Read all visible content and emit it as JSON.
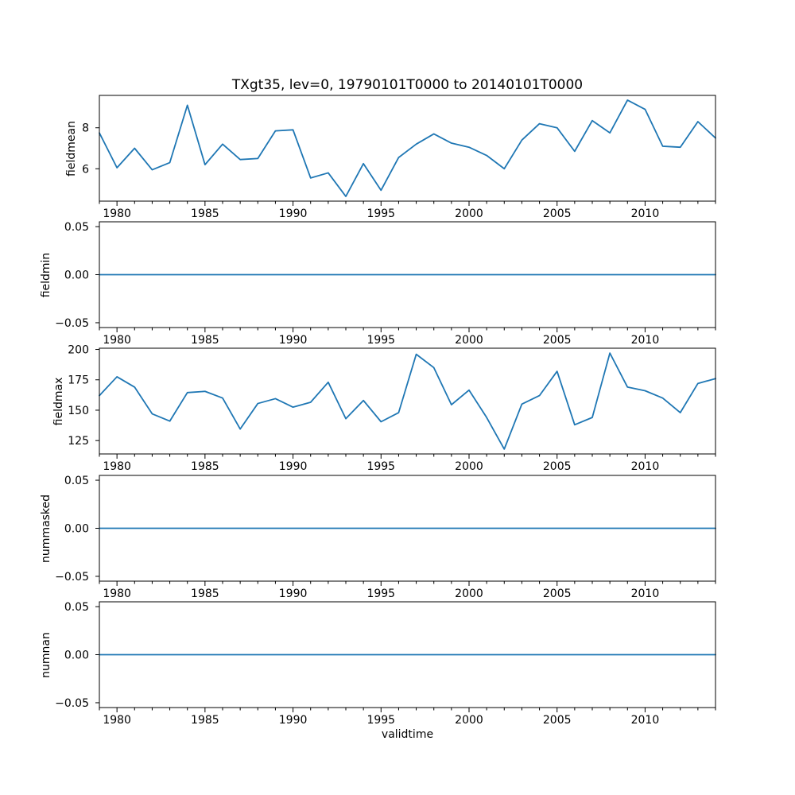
{
  "figure": {
    "title": "TXgt35, lev=0, 19790101T0000 to 20140101T0000",
    "xlabel": "validtime",
    "line_color": "#1f77b4",
    "axis_color": "#000000",
    "background": "#ffffff",
    "xlim": [
      1979,
      2014
    ],
    "x_major_ticks": [
      1980,
      1985,
      1990,
      1995,
      2000,
      2005,
      2010
    ],
    "x_major_tick_labels": [
      "1980",
      "1985",
      "1990",
      "1995",
      "2000",
      "2005",
      "2010"
    ],
    "x_minor_tick_step_years": 1
  },
  "years": [
    1979,
    1980,
    1981,
    1982,
    1983,
    1984,
    1985,
    1986,
    1987,
    1988,
    1989,
    1990,
    1991,
    1992,
    1993,
    1994,
    1995,
    1996,
    1997,
    1998,
    1999,
    2000,
    2001,
    2002,
    2003,
    2004,
    2005,
    2006,
    2007,
    2008,
    2009,
    2010,
    2011,
    2012,
    2013,
    2014
  ],
  "chart_data": [
    {
      "type": "line",
      "name": "fieldmean",
      "title": "TXgt35, lev=0, 19790101T0000 to 20140101T0000",
      "ylabel": "fieldmean",
      "x": [
        1979,
        1980,
        1981,
        1982,
        1983,
        1984,
        1985,
        1986,
        1987,
        1988,
        1989,
        1990,
        1991,
        1992,
        1993,
        1994,
        1995,
        1996,
        1997,
        1998,
        1999,
        2000,
        2001,
        2002,
        2003,
        2004,
        2005,
        2006,
        2007,
        2008,
        2009,
        2010,
        2011,
        2012,
        2013,
        2014
      ],
      "values": [
        7.75,
        6.05,
        7.0,
        5.95,
        6.3,
        9.1,
        6.2,
        7.2,
        6.45,
        6.5,
        7.85,
        7.9,
        5.55,
        5.8,
        4.65,
        6.25,
        4.95,
        6.55,
        7.2,
        7.7,
        7.25,
        7.05,
        6.65,
        6.0,
        7.4,
        8.2,
        8.0,
        6.85,
        8.35,
        7.75,
        9.35,
        8.9,
        7.1,
        7.05,
        8.3,
        7.5
      ],
      "ylim": [
        4.42,
        9.58
      ],
      "yticks": [
        6,
        8
      ],
      "ytick_labels": [
        "6",
        "8"
      ],
      "grid": false,
      "legend": "none"
    },
    {
      "type": "line",
      "name": "fieldmin",
      "ylabel": "fieldmin",
      "x": [
        1979,
        1980,
        1981,
        1982,
        1983,
        1984,
        1985,
        1986,
        1987,
        1988,
        1989,
        1990,
        1991,
        1992,
        1993,
        1994,
        1995,
        1996,
        1997,
        1998,
        1999,
        2000,
        2001,
        2002,
        2003,
        2004,
        2005,
        2006,
        2007,
        2008,
        2009,
        2010,
        2011,
        2012,
        2013,
        2014
      ],
      "values": [
        0,
        0,
        0,
        0,
        0,
        0,
        0,
        0,
        0,
        0,
        0,
        0,
        0,
        0,
        0,
        0,
        0,
        0,
        0,
        0,
        0,
        0,
        0,
        0,
        0,
        0,
        0,
        0,
        0,
        0,
        0,
        0,
        0,
        0,
        0,
        0
      ],
      "ylim": [
        -0.055,
        0.055
      ],
      "yticks": [
        -0.05,
        0.0,
        0.05
      ],
      "ytick_labels": [
        "−0.05",
        "0.00",
        "0.05"
      ],
      "grid": false,
      "legend": "none"
    },
    {
      "type": "line",
      "name": "fieldmax",
      "ylabel": "fieldmax",
      "x": [
        1979,
        1980,
        1981,
        1982,
        1983,
        1984,
        1985,
        1986,
        1987,
        1988,
        1989,
        1990,
        1991,
        1992,
        1993,
        1994,
        1995,
        1996,
        1997,
        1998,
        1999,
        2000,
        2001,
        2002,
        2003,
        2004,
        2005,
        2006,
        2007,
        2008,
        2009,
        2010,
        2011,
        2012,
        2013,
        2014
      ],
      "values": [
        162,
        177.5,
        169,
        147,
        141,
        164.5,
        165.5,
        160,
        134.5,
        155.5,
        159.5,
        152.5,
        156.5,
        173,
        143,
        158,
        140.5,
        148,
        196,
        185,
        154.5,
        166.5,
        144,
        118,
        155,
        162,
        182,
        138,
        144,
        197,
        169,
        166,
        160,
        148,
        172,
        176
      ],
      "ylim": [
        114,
        201
      ],
      "yticks": [
        125,
        150,
        175,
        200
      ],
      "ytick_labels": [
        "125",
        "150",
        "175",
        "200"
      ],
      "grid": false,
      "legend": "none"
    },
    {
      "type": "line",
      "name": "nummasked",
      "ylabel": "nummasked",
      "x": [
        1979,
        1980,
        1981,
        1982,
        1983,
        1984,
        1985,
        1986,
        1987,
        1988,
        1989,
        1990,
        1991,
        1992,
        1993,
        1994,
        1995,
        1996,
        1997,
        1998,
        1999,
        2000,
        2001,
        2002,
        2003,
        2004,
        2005,
        2006,
        2007,
        2008,
        2009,
        2010,
        2011,
        2012,
        2013,
        2014
      ],
      "values": [
        0,
        0,
        0,
        0,
        0,
        0,
        0,
        0,
        0,
        0,
        0,
        0,
        0,
        0,
        0,
        0,
        0,
        0,
        0,
        0,
        0,
        0,
        0,
        0,
        0,
        0,
        0,
        0,
        0,
        0,
        0,
        0,
        0,
        0,
        0,
        0
      ],
      "ylim": [
        -0.055,
        0.055
      ],
      "yticks": [
        -0.05,
        0.0,
        0.05
      ],
      "ytick_labels": [
        "−0.05",
        "0.00",
        "0.05"
      ],
      "grid": false,
      "legend": "none"
    },
    {
      "type": "line",
      "name": "numnan",
      "ylabel": "numnan",
      "x": [
        1979,
        1980,
        1981,
        1982,
        1983,
        1984,
        1985,
        1986,
        1987,
        1988,
        1989,
        1990,
        1991,
        1992,
        1993,
        1994,
        1995,
        1996,
        1997,
        1998,
        1999,
        2000,
        2001,
        2002,
        2003,
        2004,
        2005,
        2006,
        2007,
        2008,
        2009,
        2010,
        2011,
        2012,
        2013,
        2014
      ],
      "values": [
        0,
        0,
        0,
        0,
        0,
        0,
        0,
        0,
        0,
        0,
        0,
        0,
        0,
        0,
        0,
        0,
        0,
        0,
        0,
        0,
        0,
        0,
        0,
        0,
        0,
        0,
        0,
        0,
        0,
        0,
        0,
        0,
        0,
        0,
        0,
        0
      ],
      "ylim": [
        -0.055,
        0.055
      ],
      "yticks": [
        -0.05,
        0.0,
        0.05
      ],
      "ytick_labels": [
        "−0.05",
        "0.00",
        "0.05"
      ],
      "grid": false,
      "legend": "none"
    }
  ]
}
